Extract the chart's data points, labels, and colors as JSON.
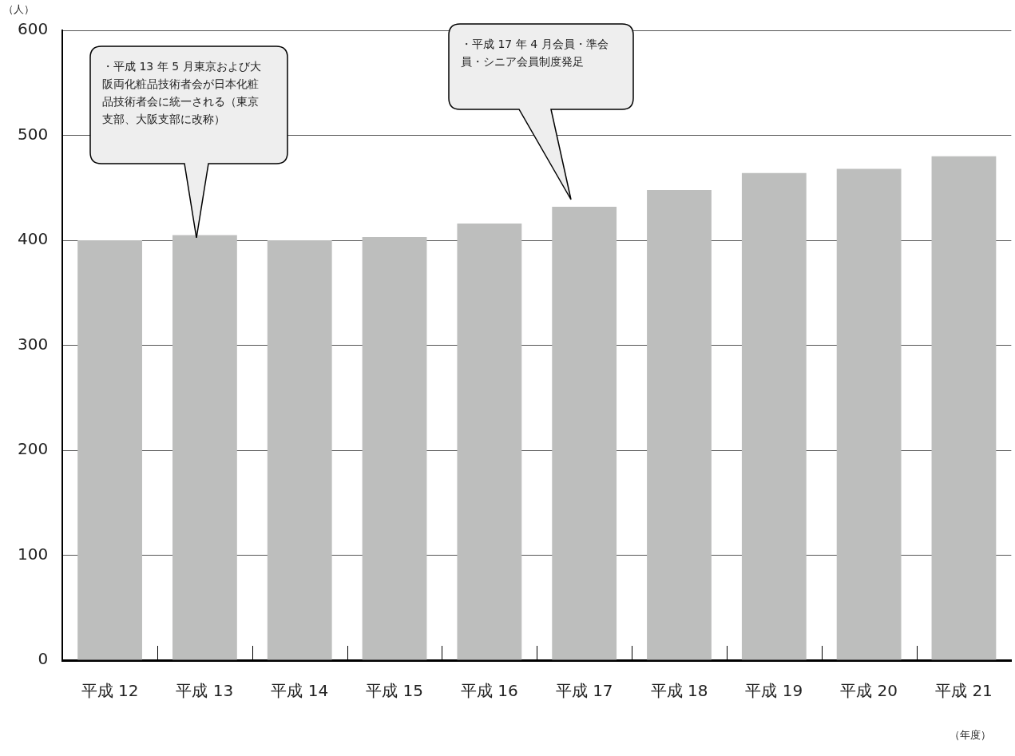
{
  "chart_data": {
    "type": "bar",
    "ylabel": "（人）",
    "xlabel": "（年度）",
    "categories": [
      "平成 12",
      "平成 13",
      "平成 14",
      "平成 15",
      "平成 16",
      "平成 17",
      "平成 18",
      "平成 19",
      "平成 20",
      "平成 21"
    ],
    "values": [
      400,
      405,
      400,
      403,
      416,
      432,
      448,
      464,
      468,
      480
    ],
    "color": "#bdbebd",
    "ylim": [
      0,
      600
    ],
    "yticks": [
      0,
      100,
      200,
      300,
      400,
      500,
      600
    ],
    "grid": "y",
    "legend": false,
    "annotations": [
      "・平成 13 年 5 月東京および大阪両化粧品技術者会が日本化粧品技術者会に統一される（東京支部、大阪支部に改称）",
      "・平成 17 年 4 月会員・準会員・シニア会員制度発足"
    ]
  }
}
